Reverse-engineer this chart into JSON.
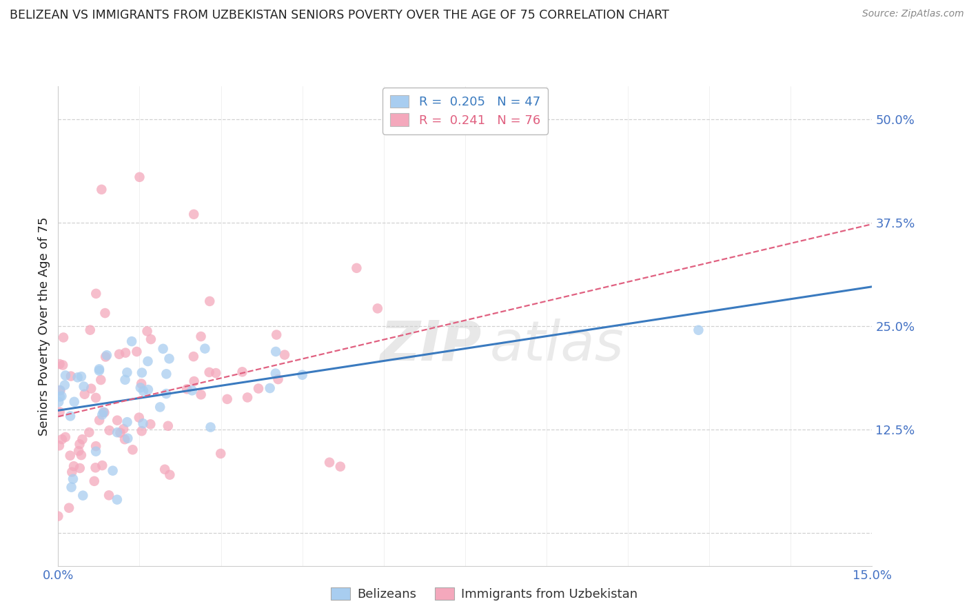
{
  "title": "BELIZEAN VS IMMIGRANTS FROM UZBEKISTAN SENIORS POVERTY OVER THE AGE OF 75 CORRELATION CHART",
  "source": "Source: ZipAtlas.com",
  "ylabel": "Seniors Poverty Over the Age of 75",
  "xlim": [
    0.0,
    0.15
  ],
  "ylim": [
    -0.04,
    0.54
  ],
  "ytick_positions": [
    0.0,
    0.125,
    0.25,
    0.375,
    0.5
  ],
  "ytick_labels": [
    "",
    "12.5%",
    "25.0%",
    "37.5%",
    "50.0%"
  ],
  "grid_color": "#cccccc",
  "background_color": "#ffffff",
  "belizean_color": "#a8cdf0",
  "uzbekistan_color": "#f4a8bc",
  "belizean_line_color": "#3a7abf",
  "uzbekistan_line_color": "#e06080",
  "legend_R_belizean": "0.205",
  "legend_N_belizean": "47",
  "legend_R_uzbekistan": "0.241",
  "legend_N_uzbekistan": "76",
  "title_color": "#222222",
  "source_color": "#888888",
  "axis_label_color": "#4472c4",
  "ylabel_color": "#222222"
}
